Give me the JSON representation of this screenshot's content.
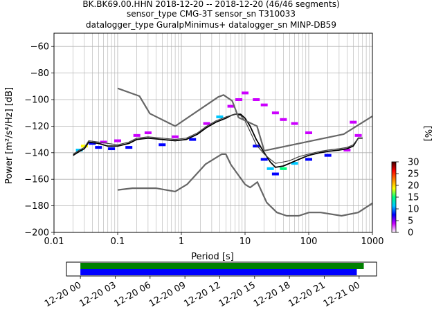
{
  "title": {
    "line1": "BK.BK69.00.HHN   2018-12-20 -- 2018-12-20  (46/46 segments)",
    "line2": "sensor_type CMG-3T sensor_sn T310033",
    "line3": "datalogger_type GuralpMinimus+ datalogger_sn MINP-DB59"
  },
  "colorbar": {
    "label": "[%]",
    "ticks": [
      "0",
      "5",
      "10",
      "15",
      "20",
      "25",
      "30"
    ],
    "range": [
      0,
      30
    ],
    "colors": [
      "#ffffff",
      "#cc00ff",
      "#0000ff",
      "#00c8ff",
      "#00ff80",
      "#ffff00",
      "#ff8000",
      "#ff0000",
      "#400000"
    ]
  },
  "chart_data": [
    {
      "type": "heatmap",
      "xlabel": "Period [s]",
      "ylabel": "Power [m²/s⁴/Hz] [dB]",
      "xscale": "log",
      "xlim": [
        0.01,
        1000
      ],
      "ylim": [
        -200,
        -50
      ],
      "xticks": [
        {
          "value": 0.01,
          "label": "0.01"
        },
        {
          "value": 0.1,
          "label": "0.1"
        },
        {
          "value": 1,
          "label": "1"
        },
        {
          "value": 10,
          "label": "10"
        },
        {
          "value": 100,
          "label": "100"
        },
        {
          "value": 1000,
          "label": "1000"
        }
      ],
      "yticks": [
        -200,
        -180,
        -160,
        -140,
        -120,
        -100,
        -80,
        -60
      ],
      "grid": true,
      "series": [
        {
          "role": "mode",
          "color": "#000000",
          "x": [
            0.02,
            0.025,
            0.03,
            0.035,
            0.05,
            0.07,
            0.1,
            0.15,
            0.2,
            0.3,
            0.5,
            0.8,
            1.2,
            1.8,
            2.5,
            3.5,
            5,
            6,
            7,
            8.5,
            10,
            12,
            15,
            20,
            25,
            30,
            40,
            50,
            70,
            100,
            150,
            200,
            300,
            400,
            500,
            600,
            700
          ],
          "y": [
            -142,
            -139,
            -137,
            -132,
            -133,
            -135,
            -135,
            -133,
            -130,
            -129,
            -130,
            -131,
            -130,
            -126,
            -121,
            -117,
            -114,
            -112,
            -111,
            -111,
            -114,
            -120,
            -130,
            -140,
            -147,
            -151,
            -150,
            -148,
            -145,
            -142,
            -140,
            -139,
            -138,
            -137,
            -135,
            -129,
            -129
          ]
        },
        {
          "role": "mean",
          "color": "#444444",
          "x": [
            0.02,
            0.025,
            0.03,
            0.035,
            0.05,
            0.07,
            0.1,
            0.15,
            0.2,
            0.3,
            0.5,
            0.8,
            1.2,
            1.8,
            2.5,
            3.5,
            5,
            6,
            7,
            8.5,
            10,
            12,
            15,
            20,
            25,
            30,
            40,
            50,
            70,
            100,
            150,
            200,
            300,
            400,
            500,
            600,
            700
          ],
          "y": [
            -141,
            -138,
            -136,
            -131,
            -132,
            -133,
            -134,
            -132,
            -129,
            -128,
            -129,
            -130,
            -129,
            -125,
            -120,
            -116,
            -113,
            -112,
            -111,
            -112,
            -116,
            -124,
            -134,
            -141,
            -145,
            -148,
            -147,
            -146,
            -143,
            -141,
            -139,
            -138,
            -137,
            -136,
            -134,
            -129,
            -129
          ]
        },
        {
          "role": "nhnm",
          "color": "#666666",
          "x": [
            0.1,
            0.22,
            0.32,
            0.8,
            3.8,
            4.6,
            6.3,
            7.9,
            15.4,
            20,
            354.8,
            1000
          ],
          "y": [
            -91.5,
            -97.4,
            -110.5,
            -120,
            -98,
            -96.5,
            -101,
            -113.5,
            -120,
            -138.5,
            -126,
            -112.5
          ]
        },
        {
          "role": "nlnm",
          "color": "#666666",
          "x": [
            0.1,
            0.17,
            0.4,
            0.8,
            1.24,
            2.4,
            4.3,
            5,
            6,
            10,
            12,
            15.6,
            21.9,
            31.6,
            45,
            70,
            101,
            154,
            328,
            600,
            1000
          ],
          "y": [
            -168,
            -166.7,
            -166.7,
            -169.2,
            -163.7,
            -148.6,
            -141.1,
            -141.1,
            -149,
            -163.8,
            -166.2,
            -162.1,
            -177.5,
            -185,
            -187.5,
            -187.5,
            -185,
            -185,
            -187.5,
            -185,
            -178
          ]
        }
      ],
      "cells": [
        {
          "x": 0.025,
          "y": -138,
          "p": 12
        },
        {
          "x": 0.03,
          "y": -135,
          "p": 18
        },
        {
          "x": 0.04,
          "y": -133,
          "p": 8
        },
        {
          "x": 0.05,
          "y": -136,
          "p": 6
        },
        {
          "x": 0.06,
          "y": -132,
          "p": 4
        },
        {
          "x": 0.08,
          "y": -137,
          "p": 9
        },
        {
          "x": 0.1,
          "y": -131,
          "p": 3
        },
        {
          "x": 0.15,
          "y": -136,
          "p": 7
        },
        {
          "x": 0.2,
          "y": -127,
          "p": 5
        },
        {
          "x": 0.3,
          "y": -125,
          "p": 3
        },
        {
          "x": 0.5,
          "y": -134,
          "p": 6
        },
        {
          "x": 0.8,
          "y": -128,
          "p": 2
        },
        {
          "x": 1.5,
          "y": -130,
          "p": 8
        },
        {
          "x": 2.5,
          "y": -118,
          "p": 5
        },
        {
          "x": 4,
          "y": -113,
          "p": 10
        },
        {
          "x": 6,
          "y": -105,
          "p": 2
        },
        {
          "x": 8,
          "y": -100,
          "p": 2
        },
        {
          "x": 10,
          "y": -95,
          "p": 2
        },
        {
          "x": 15,
          "y": -100,
          "p": 2
        },
        {
          "x": 20,
          "y": -104,
          "p": 2
        },
        {
          "x": 30,
          "y": -110,
          "p": 2
        },
        {
          "x": 40,
          "y": -115,
          "p": 2
        },
        {
          "x": 60,
          "y": -118,
          "p": 2
        },
        {
          "x": 100,
          "y": -125,
          "p": 2
        },
        {
          "x": 15,
          "y": -135,
          "p": 6
        },
        {
          "x": 20,
          "y": -145,
          "p": 8
        },
        {
          "x": 25,
          "y": -152,
          "p": 12
        },
        {
          "x": 30,
          "y": -156,
          "p": 9
        },
        {
          "x": 40,
          "y": -152,
          "p": 14
        },
        {
          "x": 60,
          "y": -148,
          "p": 10
        },
        {
          "x": 100,
          "y": -145,
          "p": 7
        },
        {
          "x": 200,
          "y": -142,
          "p": 6
        },
        {
          "x": 400,
          "y": -138,
          "p": 4
        },
        {
          "x": 600,
          "y": -127,
          "p": 3
        },
        {
          "x": 500,
          "y": -117,
          "p": 2
        }
      ]
    },
    {
      "type": "timeline",
      "xticks": [
        "12-20 00",
        "12-20 03",
        "12-20 06",
        "12-20 09",
        "12-20 12",
        "12-20 15",
        "12-20 18",
        "12-20 21",
        "12-21 00"
      ],
      "xlim_hours": [
        -1.2,
        25.5
      ],
      "bars": [
        {
          "name": "data",
          "color": "#008000",
          "start_hour": 0,
          "end_hour": 24.4
        },
        {
          "name": "psd",
          "color": "#0000ff",
          "start_hour": 0,
          "end_hour": 23.8
        }
      ]
    }
  ]
}
